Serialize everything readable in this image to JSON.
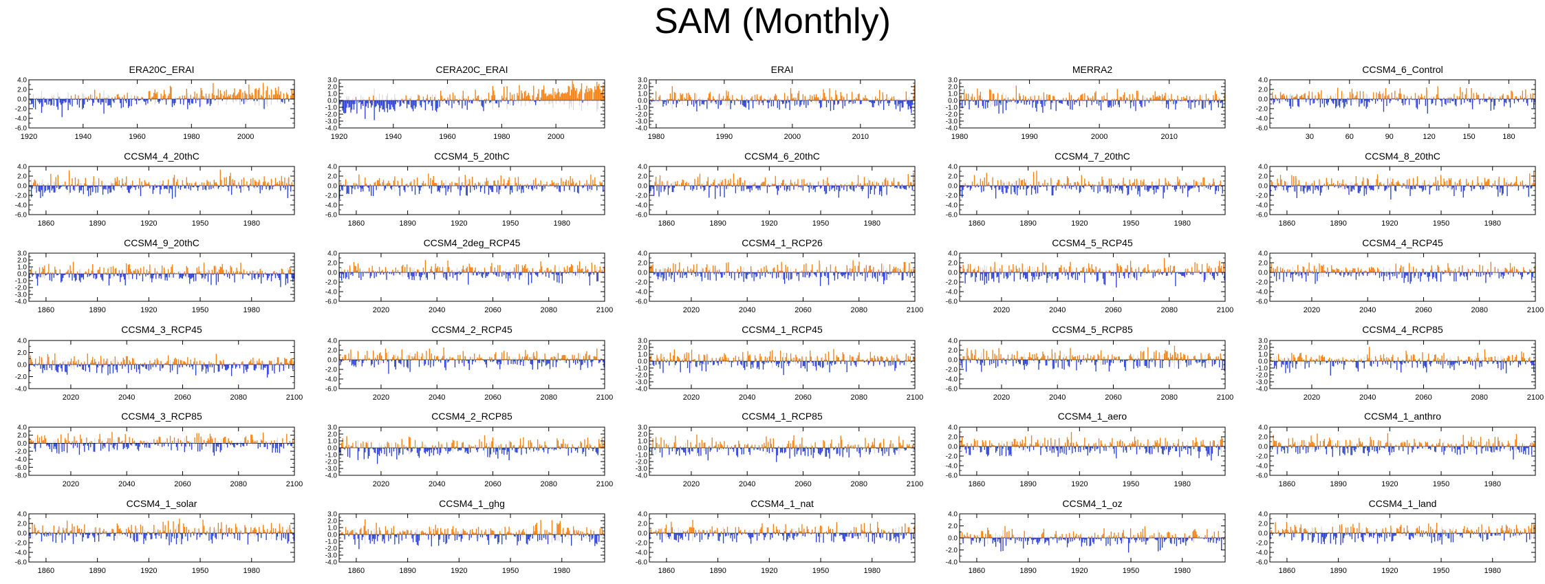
{
  "title": "SAM (Monthly)",
  "colors": {
    "positive": "#f57f0f",
    "negative": "#2a3fd8",
    "residual": "#d9d9d9",
    "frame": "#000000"
  },
  "chart_data": [
    {
      "type": "bar",
      "title": "ERA20C_ERAI",
      "x_start": 1920,
      "x_end": 2018,
      "xticks": [
        "1920",
        "1940",
        "1960",
        "1980",
        "2000"
      ],
      "yticks": [
        "4.0",
        "2.0",
        "0.0",
        "-2.0",
        "-4.0",
        "-6.0"
      ],
      "ylim": [
        -6,
        4
      ],
      "trend": "upward",
      "series": [
        {
          "name": "positive",
          "color": "#f57f0f"
        },
        {
          "name": "negative",
          "color": "#2a3fd8"
        }
      ]
    },
    {
      "type": "bar",
      "title": "CERA20C_ERAI",
      "x_start": 1920,
      "x_end": 2018,
      "xticks": [
        "1920",
        "1940",
        "1960",
        "1980",
        "2000"
      ],
      "yticks": [
        "3.0",
        "2.0",
        "1.0",
        "0.0",
        "-1.0",
        "-2.0",
        "-3.0",
        "-4.0"
      ],
      "ylim": [
        -4,
        3
      ],
      "trend": "upward",
      "series": [
        {
          "name": "positive",
          "color": "#f57f0f"
        },
        {
          "name": "negative",
          "color": "#2a3fd8"
        }
      ]
    },
    {
      "type": "bar",
      "title": "ERAI",
      "x_start": 1979,
      "x_end": 2018,
      "xticks": [
        "1980",
        "1990",
        "2000",
        "2010"
      ],
      "yticks": [
        "3.0",
        "2.0",
        "1.0",
        "0.0",
        "-1.0",
        "-2.0",
        "-3.0",
        "-4.0"
      ],
      "ylim": [
        -4,
        3
      ],
      "trend": "flat",
      "series": [
        {
          "name": "positive",
          "color": "#f57f0f"
        },
        {
          "name": "negative",
          "color": "#2a3fd8"
        }
      ]
    },
    {
      "type": "bar",
      "title": "MERRA2",
      "x_start": 1980,
      "x_end": 2018,
      "xticks": [
        "1980",
        "1990",
        "2000",
        "2010"
      ],
      "yticks": [
        "3.0",
        "2.0",
        "1.0",
        "0.0",
        "-1.0",
        "-2.0",
        "-3.0",
        "-4.0"
      ],
      "ylim": [
        -4,
        3
      ],
      "trend": "flat",
      "series": [
        {
          "name": "positive",
          "color": "#f57f0f"
        },
        {
          "name": "negative",
          "color": "#2a3fd8"
        }
      ]
    },
    {
      "type": "bar",
      "title": "CCSM4_6_Control",
      "x_start": 0,
      "x_end": 200,
      "xticks": [
        "30",
        "60",
        "90",
        "120",
        "150",
        "180"
      ],
      "yticks": [
        "4.0",
        "2.0",
        "0.0",
        "-2.0",
        "-4.0",
        "-6.0"
      ],
      "ylim": [
        -6,
        4
      ],
      "trend": "flat",
      "series": [
        {
          "name": "positive",
          "color": "#f57f0f"
        },
        {
          "name": "negative",
          "color": "#2a3fd8"
        }
      ]
    },
    {
      "type": "bar",
      "title": "CCSM4_4_20thC",
      "x_start": 1850,
      "x_end": 2005,
      "xticks": [
        "1860",
        "1890",
        "1920",
        "1950",
        "1980"
      ],
      "yticks": [
        "4.0",
        "2.0",
        "0.0",
        "-2.0",
        "-4.0",
        "-6.0"
      ],
      "ylim": [
        -6,
        4
      ],
      "trend": "flat",
      "series": [
        {
          "name": "positive",
          "color": "#f57f0f"
        },
        {
          "name": "negative",
          "color": "#2a3fd8"
        }
      ]
    },
    {
      "type": "bar",
      "title": "CCSM4_5_20thC",
      "x_start": 1850,
      "x_end": 2005,
      "xticks": [
        "1860",
        "1890",
        "1920",
        "1950",
        "1980"
      ],
      "yticks": [
        "4.0",
        "2.0",
        "0.0",
        "-2.0",
        "-4.0",
        "-6.0"
      ],
      "ylim": [
        -6,
        4
      ],
      "trend": "flat",
      "series": [
        {
          "name": "positive",
          "color": "#f57f0f"
        },
        {
          "name": "negative",
          "color": "#2a3fd8"
        }
      ]
    },
    {
      "type": "bar",
      "title": "CCSM4_6_20thC",
      "x_start": 1850,
      "x_end": 2005,
      "xticks": [
        "1860",
        "1890",
        "1920",
        "1950",
        "1980"
      ],
      "yticks": [
        "4.0",
        "2.0",
        "0.0",
        "-2.0",
        "-4.0",
        "-6.0"
      ],
      "ylim": [
        -6,
        4
      ],
      "trend": "flat",
      "series": [
        {
          "name": "positive",
          "color": "#f57f0f"
        },
        {
          "name": "negative",
          "color": "#2a3fd8"
        }
      ]
    },
    {
      "type": "bar",
      "title": "CCSM4_7_20thC",
      "x_start": 1850,
      "x_end": 2005,
      "xticks": [
        "1860",
        "1890",
        "1920",
        "1950",
        "1980"
      ],
      "yticks": [
        "4.0",
        "2.0",
        "0.0",
        "-2.0",
        "-4.0",
        "-6.0"
      ],
      "ylim": [
        -6,
        4
      ],
      "trend": "flat",
      "series": [
        {
          "name": "positive",
          "color": "#f57f0f"
        },
        {
          "name": "negative",
          "color": "#2a3fd8"
        }
      ]
    },
    {
      "type": "bar",
      "title": "CCSM4_8_20thC",
      "x_start": 1850,
      "x_end": 2005,
      "xticks": [
        "1860",
        "1890",
        "1920",
        "1950",
        "1980"
      ],
      "yticks": [
        "4.0",
        "2.0",
        "0.0",
        "-2.0",
        "-4.0",
        "-6.0"
      ],
      "ylim": [
        -6,
        4
      ],
      "trend": "flat",
      "series": [
        {
          "name": "positive",
          "color": "#f57f0f"
        },
        {
          "name": "negative",
          "color": "#2a3fd8"
        }
      ]
    },
    {
      "type": "bar",
      "title": "CCSM4_9_20thC",
      "x_start": 1850,
      "x_end": 2005,
      "xticks": [
        "1860",
        "1890",
        "1920",
        "1950",
        "1980"
      ],
      "yticks": [
        "3.0",
        "2.0",
        "1.0",
        "0.0",
        "-1.0",
        "-2.0",
        "-3.0",
        "-4.0"
      ],
      "ylim": [
        -4,
        3
      ],
      "trend": "flat",
      "series": [
        {
          "name": "positive",
          "color": "#f57f0f"
        },
        {
          "name": "negative",
          "color": "#2a3fd8"
        }
      ]
    },
    {
      "type": "bar",
      "title": "CCSM4_2deg_RCP45",
      "x_start": 2005,
      "x_end": 2100,
      "xticks": [
        "2020",
        "2040",
        "2060",
        "2080",
        "2100"
      ],
      "yticks": [
        "4.0",
        "2.0",
        "0.0",
        "-2.0",
        "-4.0",
        "-6.0"
      ],
      "ylim": [
        -6,
        4
      ],
      "trend": "flat",
      "series": [
        {
          "name": "positive",
          "color": "#f57f0f"
        },
        {
          "name": "negative",
          "color": "#2a3fd8"
        }
      ]
    },
    {
      "type": "bar",
      "title": "CCSM4_1_RCP26",
      "x_start": 2005,
      "x_end": 2100,
      "xticks": [
        "2020",
        "2040",
        "2060",
        "2080",
        "2100"
      ],
      "yticks": [
        "4.0",
        "2.0",
        "0.0",
        "-2.0",
        "-4.0",
        "-6.0"
      ],
      "ylim": [
        -6,
        4
      ],
      "trend": "flat",
      "series": [
        {
          "name": "positive",
          "color": "#f57f0f"
        },
        {
          "name": "negative",
          "color": "#2a3fd8"
        }
      ]
    },
    {
      "type": "bar",
      "title": "CCSM4_5_RCP45",
      "x_start": 2005,
      "x_end": 2100,
      "xticks": [
        "2020",
        "2040",
        "2060",
        "2080",
        "2100"
      ],
      "yticks": [
        "4.0",
        "2.0",
        "0.0",
        "-2.0",
        "-4.0",
        "-6.0"
      ],
      "ylim": [
        -6,
        4
      ],
      "trend": "flat",
      "series": [
        {
          "name": "positive",
          "color": "#f57f0f"
        },
        {
          "name": "negative",
          "color": "#2a3fd8"
        }
      ]
    },
    {
      "type": "bar",
      "title": "CCSM4_4_RCP45",
      "x_start": 2005,
      "x_end": 2100,
      "xticks": [
        "2020",
        "2040",
        "2060",
        "2080",
        "2100"
      ],
      "yticks": [
        "4.0",
        "2.0",
        "0.0",
        "-2.0",
        "-4.0",
        "-6.0"
      ],
      "ylim": [
        -6,
        4
      ],
      "trend": "flat",
      "series": [
        {
          "name": "positive",
          "color": "#f57f0f"
        },
        {
          "name": "negative",
          "color": "#2a3fd8"
        }
      ]
    },
    {
      "type": "bar",
      "title": "CCSM4_3_RCP45",
      "x_start": 2005,
      "x_end": 2100,
      "xticks": [
        "2020",
        "2040",
        "2060",
        "2080",
        "2100"
      ],
      "yticks": [
        "4.0",
        "2.0",
        "0.0",
        "-2.0",
        "-4.0"
      ],
      "ylim": [
        -4,
        4
      ],
      "trend": "flat",
      "series": [
        {
          "name": "positive",
          "color": "#f57f0f"
        },
        {
          "name": "negative",
          "color": "#2a3fd8"
        }
      ]
    },
    {
      "type": "bar",
      "title": "CCSM4_2_RCP45",
      "x_start": 2005,
      "x_end": 2100,
      "xticks": [
        "2020",
        "2040",
        "2060",
        "2080",
        "2100"
      ],
      "yticks": [
        "4.0",
        "2.0",
        "0.0",
        "-2.0",
        "-4.0",
        "-6.0"
      ],
      "ylim": [
        -6,
        4
      ],
      "trend": "flat",
      "series": [
        {
          "name": "positive",
          "color": "#f57f0f"
        },
        {
          "name": "negative",
          "color": "#2a3fd8"
        }
      ]
    },
    {
      "type": "bar",
      "title": "CCSM4_1_RCP45",
      "x_start": 2005,
      "x_end": 2100,
      "xticks": [
        "2020",
        "2040",
        "2060",
        "2080",
        "2100"
      ],
      "yticks": [
        "3.0",
        "2.0",
        "1.0",
        "0.0",
        "-1.0",
        "-2.0",
        "-3.0",
        "-4.0"
      ],
      "ylim": [
        -4,
        3
      ],
      "trend": "flat",
      "series": [
        {
          "name": "positive",
          "color": "#f57f0f"
        },
        {
          "name": "negative",
          "color": "#2a3fd8"
        }
      ]
    },
    {
      "type": "bar",
      "title": "CCSM4_5_RCP85",
      "x_start": 2005,
      "x_end": 2100,
      "xticks": [
        "2020",
        "2040",
        "2060",
        "2080",
        "2100"
      ],
      "yticks": [
        "4.0",
        "2.0",
        "0.0",
        "-2.0",
        "-4.0",
        "-6.0"
      ],
      "ylim": [
        -6,
        4
      ],
      "trend": "flat",
      "series": [
        {
          "name": "positive",
          "color": "#f57f0f"
        },
        {
          "name": "negative",
          "color": "#2a3fd8"
        }
      ]
    },
    {
      "type": "bar",
      "title": "CCSM4_4_RCP85",
      "x_start": 2005,
      "x_end": 2100,
      "xticks": [
        "2020",
        "2040",
        "2060",
        "2080",
        "2100"
      ],
      "yticks": [
        "3.0",
        "2.0",
        "1.0",
        "0.0",
        "-1.0",
        "-2.0",
        "-3.0",
        "-4.0"
      ],
      "ylim": [
        -4,
        3
      ],
      "trend": "flat",
      "series": [
        {
          "name": "positive",
          "color": "#f57f0f"
        },
        {
          "name": "negative",
          "color": "#2a3fd8"
        }
      ]
    },
    {
      "type": "bar",
      "title": "CCSM4_3_RCP85",
      "x_start": 2005,
      "x_end": 2100,
      "xticks": [
        "2020",
        "2040",
        "2060",
        "2080",
        "2100"
      ],
      "yticks": [
        "4.0",
        "2.0",
        "0.0",
        "-2.0",
        "-4.0",
        "-6.0",
        "-8.0"
      ],
      "ylim": [
        -8,
        4
      ],
      "trend": "flat",
      "series": [
        {
          "name": "positive",
          "color": "#f57f0f"
        },
        {
          "name": "negative",
          "color": "#2a3fd8"
        }
      ]
    },
    {
      "type": "bar",
      "title": "CCSM4_2_RCP85",
      "x_start": 2005,
      "x_end": 2100,
      "xticks": [
        "2020",
        "2040",
        "2060",
        "2080",
        "2100"
      ],
      "yticks": [
        "3.0",
        "2.0",
        "1.0",
        "0.0",
        "-1.0",
        "-2.0",
        "-3.0",
        "-4.0"
      ],
      "ylim": [
        -4,
        3
      ],
      "trend": "flat",
      "series": [
        {
          "name": "positive",
          "color": "#f57f0f"
        },
        {
          "name": "negative",
          "color": "#2a3fd8"
        }
      ]
    },
    {
      "type": "bar",
      "title": "CCSM4_1_RCP85",
      "x_start": 2005,
      "x_end": 2100,
      "xticks": [
        "2020",
        "2040",
        "2060",
        "2080",
        "2100"
      ],
      "yticks": [
        "3.0",
        "2.0",
        "1.0",
        "0.0",
        "-1.0",
        "-2.0",
        "-3.0",
        "-4.0"
      ],
      "ylim": [
        -4,
        3
      ],
      "trend": "flat",
      "series": [
        {
          "name": "positive",
          "color": "#f57f0f"
        },
        {
          "name": "negative",
          "color": "#2a3fd8"
        }
      ]
    },
    {
      "type": "bar",
      "title": "CCSM4_1_aero",
      "x_start": 1850,
      "x_end": 2005,
      "xticks": [
        "1860",
        "1890",
        "1920",
        "1950",
        "1980"
      ],
      "yticks": [
        "4.0",
        "2.0",
        "0.0",
        "-2.0",
        "-4.0",
        "-6.0"
      ],
      "ylim": [
        -6,
        4
      ],
      "trend": "flat",
      "series": [
        {
          "name": "positive",
          "color": "#f57f0f"
        },
        {
          "name": "negative",
          "color": "#2a3fd8"
        }
      ]
    },
    {
      "type": "bar",
      "title": "CCSM4_1_anthro",
      "x_start": 1850,
      "x_end": 2005,
      "xticks": [
        "1860",
        "1890",
        "1920",
        "1950",
        "1980"
      ],
      "yticks": [
        "4.0",
        "2.0",
        "0.0",
        "-2.0",
        "-4.0",
        "-6.0"
      ],
      "ylim": [
        -6,
        4
      ],
      "trend": "flat",
      "series": [
        {
          "name": "positive",
          "color": "#f57f0f"
        },
        {
          "name": "negative",
          "color": "#2a3fd8"
        }
      ]
    },
    {
      "type": "bar",
      "title": "CCSM4_1_solar",
      "x_start": 1850,
      "x_end": 2005,
      "xticks": [
        "1860",
        "1890",
        "1920",
        "1950",
        "1980"
      ],
      "yticks": [
        "4.0",
        "2.0",
        "0.0",
        "-2.0",
        "-4.0",
        "-6.0"
      ],
      "ylim": [
        -6,
        4
      ],
      "trend": "flat",
      "series": [
        {
          "name": "positive",
          "color": "#f57f0f"
        },
        {
          "name": "negative",
          "color": "#2a3fd8"
        }
      ]
    },
    {
      "type": "bar",
      "title": "CCSM4_1_ghg",
      "x_start": 1850,
      "x_end": 2005,
      "xticks": [
        "1860",
        "1890",
        "1920",
        "1950",
        "1980"
      ],
      "yticks": [
        "3.0",
        "2.0",
        "1.0",
        "0.0",
        "-1.0",
        "-2.0",
        "-3.0",
        "-4.0"
      ],
      "ylim": [
        -4,
        3
      ],
      "trend": "flat",
      "series": [
        {
          "name": "positive",
          "color": "#f57f0f"
        },
        {
          "name": "negative",
          "color": "#2a3fd8"
        }
      ]
    },
    {
      "type": "bar",
      "title": "CCSM4_1_nat",
      "x_start": 1850,
      "x_end": 2005,
      "xticks": [
        "1860",
        "1890",
        "1920",
        "1950",
        "1980"
      ],
      "yticks": [
        "4.0",
        "2.0",
        "0.0",
        "-2.0",
        "-4.0",
        "-6.0"
      ],
      "ylim": [
        -6,
        4
      ],
      "trend": "flat",
      "series": [
        {
          "name": "positive",
          "color": "#f57f0f"
        },
        {
          "name": "negative",
          "color": "#2a3fd8"
        }
      ]
    },
    {
      "type": "bar",
      "title": "CCSM4_1_oz",
      "x_start": 1850,
      "x_end": 2005,
      "xticks": [
        "1860",
        "1890",
        "1920",
        "1950",
        "1980"
      ],
      "yticks": [
        "4.0",
        "2.0",
        "0.0",
        "-2.0",
        "-4.0"
      ],
      "ylim": [
        -4,
        4
      ],
      "trend": "flat",
      "series": [
        {
          "name": "positive",
          "color": "#f57f0f"
        },
        {
          "name": "negative",
          "color": "#2a3fd8"
        }
      ]
    },
    {
      "type": "bar",
      "title": "CCSM4_1_land",
      "x_start": 1850,
      "x_end": 2005,
      "xticks": [
        "1860",
        "1890",
        "1920",
        "1950",
        "1980"
      ],
      "yticks": [
        "4.0",
        "2.0",
        "0.0",
        "-2.0",
        "-4.0",
        "-6.0"
      ],
      "ylim": [
        -6,
        4
      ],
      "trend": "flat",
      "series": [
        {
          "name": "positive",
          "color": "#f57f0f"
        },
        {
          "name": "negative",
          "color": "#2a3fd8"
        }
      ]
    }
  ]
}
